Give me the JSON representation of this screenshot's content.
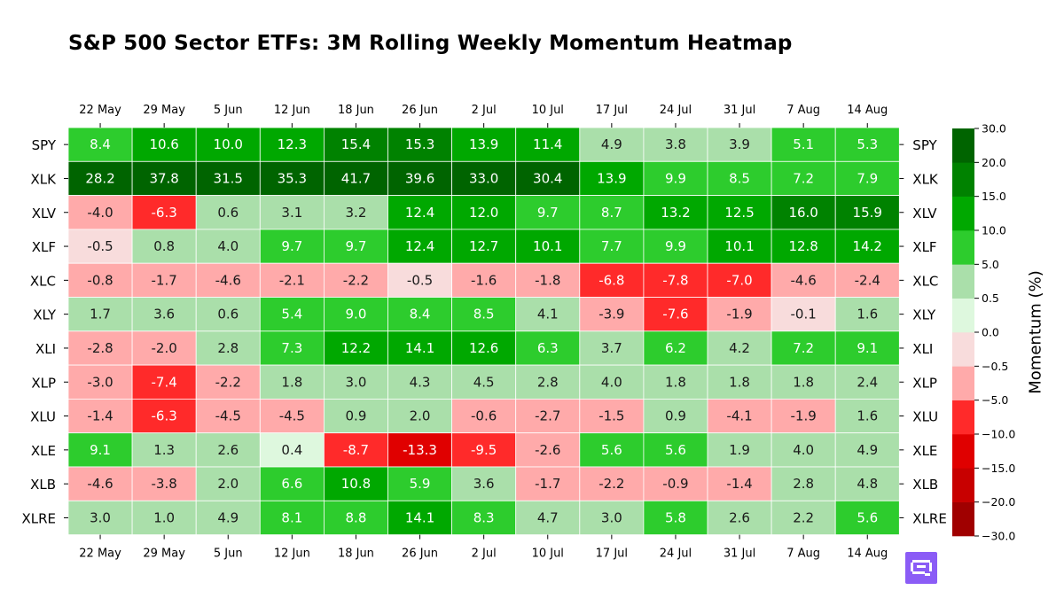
{
  "chart_data": {
    "type": "heatmap",
    "title": "S&P 500 Sector ETFs: 3M Rolling Weekly Momentum Heatmap",
    "x_labels": [
      "22 May",
      "29 May",
      "5 Jun",
      "12 Jun",
      "18 Jun",
      "26 Jun",
      "2 Jul",
      "10 Jul",
      "17 Jul",
      "24 Jul",
      "31 Jul",
      "7 Aug",
      "14 Aug"
    ],
    "y_labels": [
      "SPY",
      "XLK",
      "XLV",
      "XLF",
      "XLC",
      "XLY",
      "XLI",
      "XLP",
      "XLU",
      "XLE",
      "XLB",
      "XLRE"
    ],
    "values": [
      [
        8.4,
        10.6,
        10.0,
        12.3,
        15.4,
        15.3,
        13.9,
        11.4,
        4.9,
        3.8,
        3.9,
        5.1,
        5.3
      ],
      [
        28.2,
        37.8,
        31.5,
        35.3,
        41.7,
        39.6,
        33.0,
        30.4,
        13.9,
        9.9,
        8.5,
        7.2,
        7.9
      ],
      [
        -4.0,
        -6.3,
        0.6,
        3.1,
        3.2,
        12.4,
        12.0,
        9.7,
        8.7,
        13.2,
        12.5,
        16.0,
        15.9
      ],
      [
        -0.5,
        0.8,
        4.0,
        9.7,
        9.7,
        12.4,
        12.7,
        10.1,
        7.7,
        9.9,
        10.1,
        12.8,
        14.2
      ],
      [
        -0.8,
        -1.7,
        -4.6,
        -2.1,
        -2.2,
        -0.5,
        -1.6,
        -1.8,
        -6.8,
        -7.8,
        -7.0,
        -4.6,
        -2.4
      ],
      [
        1.7,
        3.6,
        0.6,
        5.4,
        9.0,
        8.4,
        8.5,
        4.1,
        -3.9,
        -7.6,
        -1.9,
        -0.1,
        1.6
      ],
      [
        -2.8,
        -2.0,
        2.8,
        7.3,
        12.2,
        14.1,
        12.6,
        6.3,
        3.7,
        6.2,
        4.2,
        7.2,
        9.1
      ],
      [
        -3.0,
        -7.4,
        -2.2,
        1.8,
        3.0,
        4.3,
        4.5,
        2.8,
        4.0,
        1.8,
        1.8,
        1.8,
        2.4
      ],
      [
        -1.4,
        -6.3,
        -4.5,
        -4.5,
        0.9,
        2.0,
        -0.6,
        -2.7,
        -1.5,
        0.9,
        -4.1,
        -1.9,
        1.6
      ],
      [
        9.1,
        1.3,
        2.6,
        0.4,
        -8.7,
        -13.3,
        -9.5,
        -2.6,
        5.6,
        5.6,
        1.9,
        4.0,
        4.9
      ],
      [
        -4.6,
        -3.8,
        2.0,
        6.6,
        10.8,
        5.9,
        3.6,
        -1.7,
        -2.2,
        -0.9,
        -1.4,
        2.8,
        4.8
      ],
      [
        3.0,
        1.0,
        4.9,
        8.1,
        8.8,
        14.1,
        8.3,
        4.7,
        3.0,
        5.8,
        2.6,
        2.2,
        5.6
      ]
    ],
    "colorbar": {
      "label": "Momentum (%)",
      "boundaries": [
        -30,
        -20,
        -15,
        -10,
        -5,
        -0.5,
        0,
        0.5,
        5,
        10,
        15,
        20,
        30
      ],
      "tick_labels": [
        "−30.0",
        "−20.0",
        "−15.0",
        "−10.0",
        "−5.0",
        "−0.5",
        "0.0",
        "0.5",
        "5.0",
        "10.0",
        "15.0",
        "20.0",
        "30.0"
      ],
      "colors": [
        "#a00000",
        "#c80000",
        "#e00000",
        "#ff2a2a",
        "#ffaaaa",
        "#f8dcdc",
        "#def8de",
        "#aadfaa",
        "#2dcc2d",
        "#00a800",
        "#008200",
        "#006400"
      ]
    },
    "x_tick_positions": [
      "top",
      "bottom"
    ],
    "y_tick_positions": [
      "left",
      "right"
    ],
    "annotation_colors": {
      "dark": "#1a1a1a",
      "light": "#ffffff"
    },
    "grid_line_color": "#ffffff"
  }
}
